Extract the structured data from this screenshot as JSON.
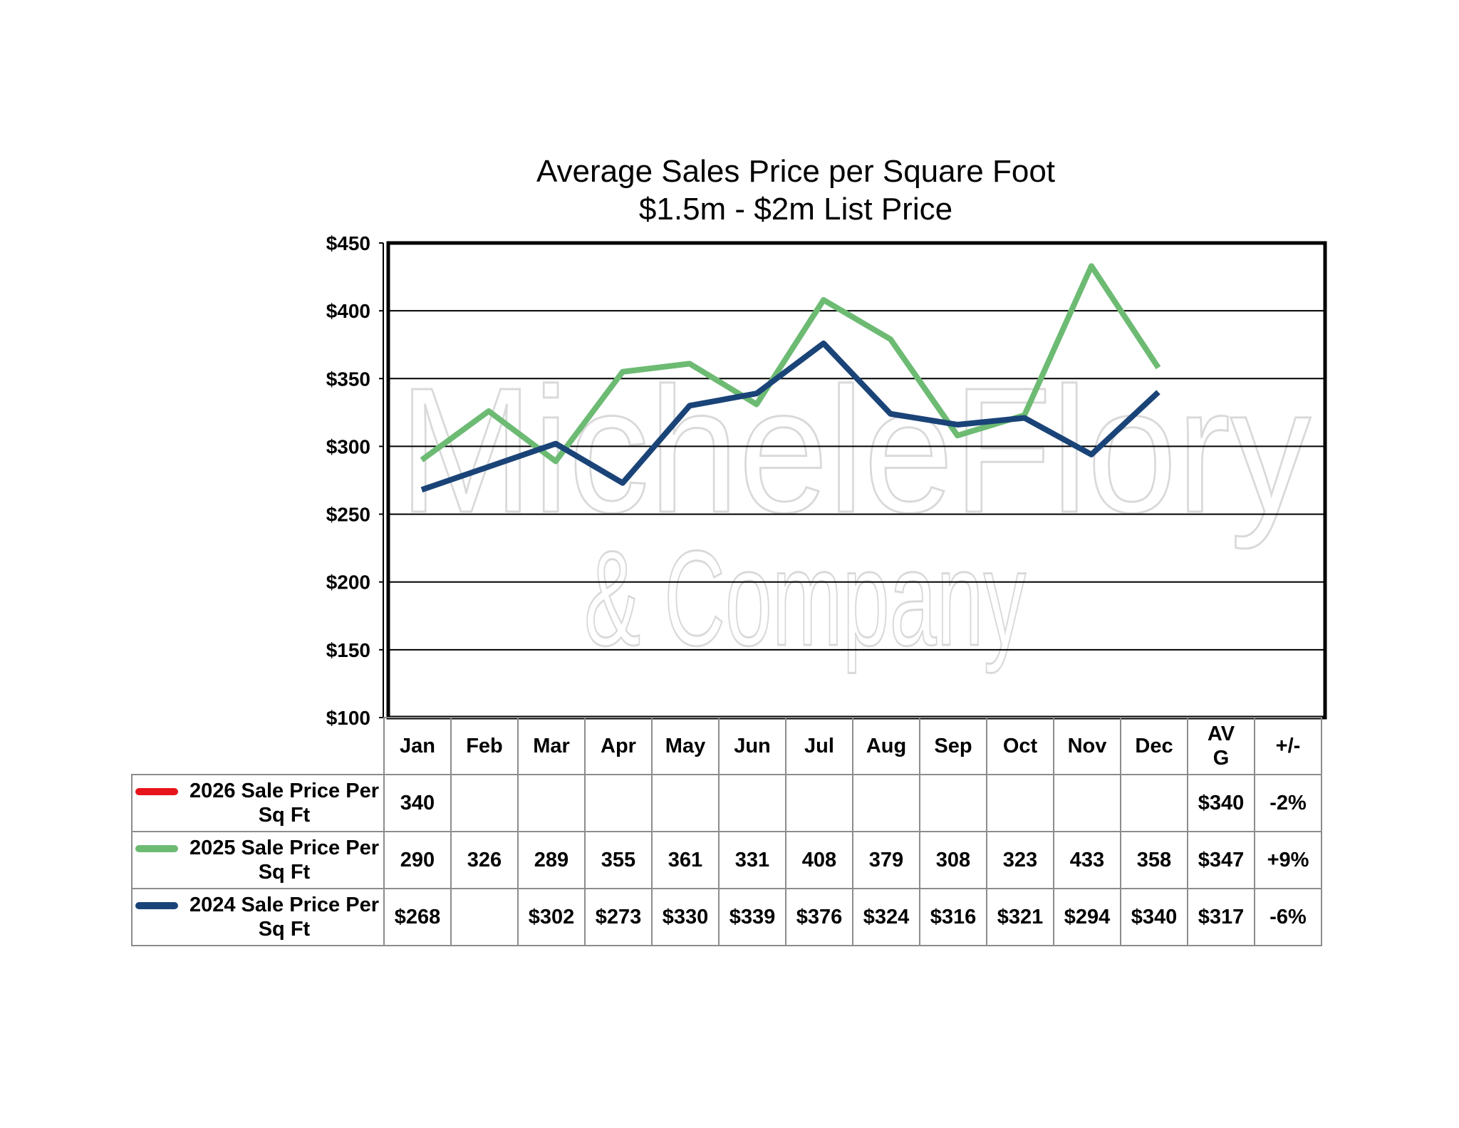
{
  "chart_data": {
    "type": "line",
    "title": "Average Sales Price per Square Foot",
    "subtitle": "$1.5m - $2m List Price",
    "categories": [
      "Jan",
      "Feb",
      "Mar",
      "Apr",
      "May",
      "Jun",
      "Jul",
      "Aug",
      "Sep",
      "Oct",
      "Nov",
      "Dec"
    ],
    "ylim": [
      100,
      450
    ],
    "yticks": [
      "$450",
      "$400",
      "$350",
      "$300",
      "$250",
      "$200",
      "$150",
      "$100"
    ],
    "ytick_values": [
      450,
      400,
      350,
      300,
      250,
      200,
      150,
      100
    ],
    "grid": true,
    "legend_position": "data-table",
    "series": [
      {
        "name": "2026 Sale Price Per Sq Ft",
        "color": "#e8141b",
        "values": [
          340,
          null,
          null,
          null,
          null,
          null,
          null,
          null,
          null,
          null,
          null,
          null
        ]
      },
      {
        "name": "2025 Sale Price Per Sq Ft",
        "color": "#6dbb73",
        "values": [
          290,
          326,
          289,
          355,
          361,
          331,
          408,
          379,
          308,
          323,
          433,
          358
        ]
      },
      {
        "name": "2024 Sale Price Per Sq Ft",
        "color": "#1a4478",
        "values": [
          268,
          285,
          302,
          273,
          330,
          339,
          376,
          324,
          316,
          321,
          294,
          340
        ]
      }
    ]
  },
  "table": {
    "headers": [
      "Jan",
      "Feb",
      "Mar",
      "Apr",
      "May",
      "Jun",
      "Jul",
      "Aug",
      "Sep",
      "Oct",
      "Nov",
      "Dec",
      "AV\nG",
      "+/-"
    ],
    "rows": [
      {
        "label": "2026 Sale Price Per Sq Ft",
        "color": "#e8141b",
        "cells": [
          "340",
          "",
          "",
          "",
          "",
          "",
          "",
          "",
          "",
          "",
          "",
          "",
          "$340",
          "-2%"
        ]
      },
      {
        "label": "2025 Sale Price Per Sq Ft",
        "color": "#6dbb73",
        "cells": [
          "290",
          "326",
          "289",
          "355",
          "361",
          "331",
          "408",
          "379",
          "308",
          "323",
          "433",
          "358",
          "$347",
          "+9%"
        ]
      },
      {
        "label": "2024 Sale Price Per Sq Ft",
        "color": "#1a4478",
        "cells": [
          "$268",
          "",
          "$302",
          "$273",
          "$330",
          "$339",
          "$376",
          "$324",
          "$316",
          "$321",
          "$294",
          "$340",
          "$317",
          "-6%"
        ]
      }
    ]
  },
  "watermark": {
    "line1": "MicheleFlory",
    "line2": "& Company"
  }
}
